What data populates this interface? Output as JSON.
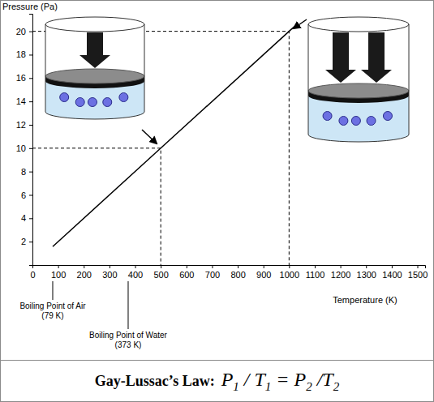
{
  "chart_data": {
    "type": "line",
    "y_label": "Pressure (Pa)",
    "x_label": "Temperature (K)",
    "x": [
      79,
      500,
      1000,
      1030
    ],
    "values": [
      1.58,
      10,
      20,
      20.6
    ],
    "color": "#000000",
    "xlim": [
      0,
      1530
    ],
    "xticks": [
      0,
      100,
      200,
      300,
      400,
      500,
      600,
      700,
      800,
      900,
      1000,
      1100,
      1200,
      1300,
      1400,
      1500
    ],
    "ylim": [
      0,
      21.5
    ],
    "yticks": [
      2,
      4,
      6,
      8,
      10,
      12,
      14,
      16,
      18,
      20
    ],
    "reference_points": [
      {
        "x": 500,
        "y": 10
      },
      {
        "x": 1000,
        "y": 20
      }
    ],
    "annotations": [
      {
        "x": 79,
        "text": "Boiling Point of Air",
        "subtext": "(79 K)"
      },
      {
        "x": 373,
        "text": "Boiling Point of Water",
        "subtext": "(373 K)"
      }
    ],
    "caption": "Gay-Lussac’s Law:",
    "formula": [
      {
        "text": "P",
        "sub": "1"
      },
      {
        "text": " / T",
        "sub": "1"
      },
      {
        "text": " = P",
        "sub": "2"
      },
      {
        "text": " /T",
        "sub": "2"
      }
    ]
  }
}
